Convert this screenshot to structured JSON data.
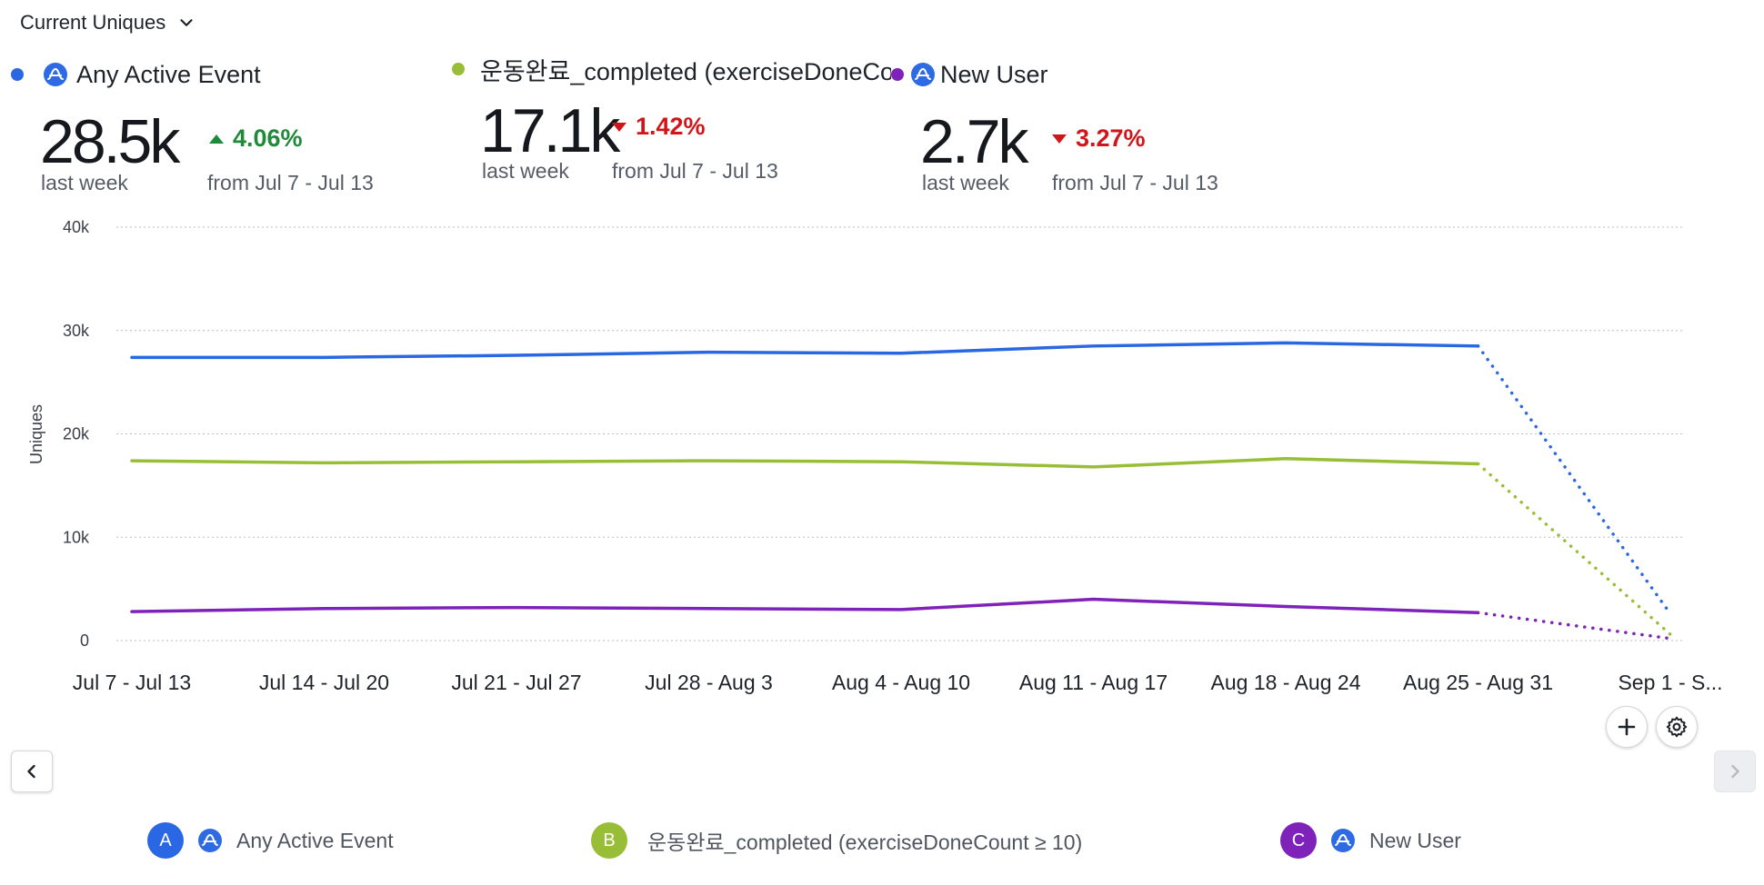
{
  "header": {
    "metric_label": "Current Uniques"
  },
  "kpis": [
    {
      "id": "A",
      "name": "Any Active Event",
      "color": "#2a67e2",
      "value": "28.5k",
      "caption": "last week",
      "delta": "4.06%",
      "direction": "up",
      "delta_caption": "from Jul 7 - Jul 13",
      "icon": "amplitude-icon"
    },
    {
      "id": "B",
      "name": "운동완료_completed (exerciseDoneCount ≥ ...",
      "color": "#98bd36",
      "value": "17.1k",
      "caption": "last week",
      "delta": "1.42%",
      "direction": "down",
      "delta_caption": "from Jul 7 - Jul 13"
    },
    {
      "id": "C",
      "name": "New User",
      "color": "#7e22b9",
      "value": "2.7k",
      "caption": "last week",
      "delta": "3.27%",
      "direction": "down",
      "delta_caption": "from Jul 7 - Jul 13",
      "icon": "amplitude-icon"
    }
  ],
  "chart_data": {
    "type": "line",
    "ylabel": "Uniques",
    "ylim": [
      0,
      40000
    ],
    "yticks": [
      0,
      10000,
      20000,
      30000,
      40000
    ],
    "ytick_labels": [
      "0",
      "10k",
      "20k",
      "30k",
      "40k"
    ],
    "categories": [
      "Jul 7 - Jul 13",
      "Jul 14 - Jul 20",
      "Jul 21 - Jul 27",
      "Jul 28 - Aug 3",
      "Aug 4 - Aug 10",
      "Aug 11 - Aug 17",
      "Aug 18 - Aug 24",
      "Aug 25 - Aug 31",
      "Sep 1 - S..."
    ],
    "incomplete_last_period": true,
    "grid": true,
    "series": [
      {
        "name": "Any Active Event",
        "color": "#2a67e2",
        "values": [
          27400,
          27400,
          27600,
          27900,
          27800,
          28500,
          28800,
          28500,
          2600
        ]
      },
      {
        "name": "운동완료_completed (exerciseDoneCount ≥ 10)",
        "color": "#98bd36",
        "values": [
          17400,
          17200,
          17300,
          17400,
          17300,
          16800,
          17600,
          17100,
          600
        ]
      },
      {
        "name": "New User",
        "color": "#7e22b9",
        "values": [
          2800,
          3100,
          3200,
          3100,
          3000,
          4000,
          3300,
          2700,
          200
        ]
      }
    ]
  },
  "legend": [
    {
      "badge": "A",
      "label": "Any Active Event",
      "color": "#2a67e2",
      "icon": "amplitude-icon"
    },
    {
      "badge": "B",
      "label": "운동완료_completed (exerciseDoneCount ≥ 10)",
      "color": "#98bd36"
    },
    {
      "badge": "C",
      "label": "New User",
      "color": "#7e22b9",
      "icon": "amplitude-icon"
    }
  ],
  "controls": {
    "add_icon": "plus-icon",
    "settings_icon": "gear-icon",
    "prev_icon": "chevron-left-icon",
    "next_icon": "chevron-right-icon"
  }
}
